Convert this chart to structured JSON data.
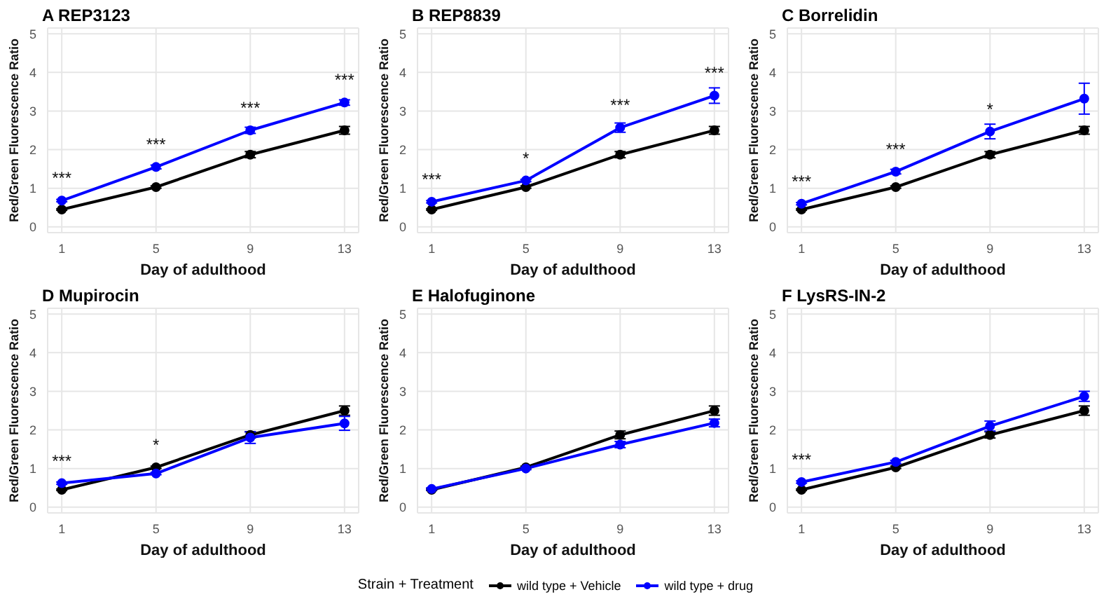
{
  "chart_data": [
    {
      "type": "line",
      "title": "A REP3123",
      "xlabel": "Day of adulthood",
      "ylabel": "Red/Green Fluorescence Ratio",
      "x": [
        1,
        5,
        9,
        13
      ],
      "xlim": [
        0.4,
        13.6
      ],
      "xticks": [
        1,
        5,
        9,
        13
      ],
      "ylim": [
        -0.15,
        5.15
      ],
      "yticks": [
        0,
        1,
        2,
        3,
        4,
        5
      ],
      "grid": true,
      "legend": false,
      "marker": "circle",
      "line_style": "solid",
      "series": [
        {
          "color": "#000000",
          "values": [
            0.45,
            1.03,
            1.87,
            2.5
          ],
          "errors": [
            0.02,
            0.03,
            0.08,
            0.1
          ]
        },
        {
          "color": "#0000ff",
          "values": [
            0.68,
            1.55,
            2.5,
            3.22
          ],
          "errors": [
            0.03,
            0.05,
            0.08,
            0.07
          ]
        }
      ],
      "annotations": [
        {
          "text": "***",
          "x": 1,
          "y": 0.68
        },
        {
          "text": "***",
          "x": 5,
          "y": 1.55
        },
        {
          "text": "***",
          "x": 9,
          "y": 2.5
        },
        {
          "text": "***",
          "x": 13,
          "y": 3.22
        }
      ]
    },
    {
      "type": "line",
      "title": "B REP8839",
      "xlabel": "Day of adulthood",
      "ylabel": "Red/Green Fluorescence Ratio",
      "x": [
        1,
        5,
        9,
        13
      ],
      "xlim": [
        0.4,
        13.6
      ],
      "xticks": [
        1,
        5,
        9,
        13
      ],
      "ylim": [
        -0.15,
        5.15
      ],
      "yticks": [
        0,
        1,
        2,
        3,
        4,
        5
      ],
      "grid": true,
      "legend": false,
      "marker": "circle",
      "line_style": "solid",
      "series": [
        {
          "color": "#000000",
          "values": [
            0.45,
            1.03,
            1.87,
            2.5
          ],
          "errors": [
            0.02,
            0.03,
            0.08,
            0.1
          ]
        },
        {
          "color": "#0000ff",
          "values": [
            0.65,
            1.2,
            2.57,
            3.4
          ],
          "errors": [
            0.03,
            0.03,
            0.12,
            0.2
          ]
        }
      ],
      "annotations": [
        {
          "text": "***",
          "x": 1,
          "y": 0.65
        },
        {
          "text": "*",
          "x": 5,
          "y": 1.2
        },
        {
          "text": "***",
          "x": 9,
          "y": 2.57
        },
        {
          "text": "***",
          "x": 13,
          "y": 3.4
        }
      ]
    },
    {
      "type": "line",
      "title": "C Borrelidin",
      "xlabel": "Day of adulthood",
      "ylabel": "Red/Green Fluorescence Ratio",
      "x": [
        1,
        5,
        9,
        13
      ],
      "xlim": [
        0.4,
        13.6
      ],
      "xticks": [
        1,
        5,
        9,
        13
      ],
      "ylim": [
        -0.15,
        5.15
      ],
      "yticks": [
        0,
        1,
        2,
        3,
        4,
        5
      ],
      "grid": true,
      "legend": false,
      "marker": "circle",
      "line_style": "solid",
      "series": [
        {
          "color": "#000000",
          "values": [
            0.45,
            1.03,
            1.87,
            2.5
          ],
          "errors": [
            0.02,
            0.03,
            0.08,
            0.1
          ]
        },
        {
          "color": "#0000ff",
          "values": [
            0.6,
            1.43,
            2.47,
            3.32
          ],
          "errors": [
            0.03,
            0.06,
            0.19,
            0.4
          ]
        }
      ],
      "annotations": [
        {
          "text": "***",
          "x": 1,
          "y": 0.6
        },
        {
          "text": "***",
          "x": 5,
          "y": 1.43
        },
        {
          "text": "*",
          "x": 9,
          "y": 2.47
        }
      ]
    },
    {
      "type": "line",
      "title": "D Mupirocin",
      "xlabel": "Day of adulthood",
      "ylabel": "Red/Green Fluorescence Ratio",
      "x": [
        1,
        5,
        9,
        13
      ],
      "xlim": [
        0.4,
        13.6
      ],
      "xticks": [
        1,
        5,
        9,
        13
      ],
      "ylim": [
        -0.15,
        5.15
      ],
      "yticks": [
        0,
        1,
        2,
        3,
        4,
        5
      ],
      "grid": true,
      "legend": false,
      "marker": "circle",
      "line_style": "solid",
      "series": [
        {
          "color": "#000000",
          "values": [
            0.45,
            1.03,
            1.87,
            2.5
          ],
          "errors": [
            0.02,
            0.03,
            0.08,
            0.12
          ]
        },
        {
          "color": "#0000ff",
          "values": [
            0.62,
            0.87,
            1.8,
            2.17
          ],
          "errors": [
            0.03,
            0.03,
            0.15,
            0.18
          ]
        }
      ],
      "annotations": [
        {
          "text": "***",
          "x": 1,
          "y": 0.62
        },
        {
          "text": "*",
          "x": 5,
          "y": 1.03
        }
      ]
    },
    {
      "type": "line",
      "title": "E Halofuginone",
      "xlabel": "Day of adulthood",
      "ylabel": "Red/Green Fluorescence Ratio",
      "x": [
        1,
        5,
        9,
        13
      ],
      "xlim": [
        0.4,
        13.6
      ],
      "xticks": [
        1,
        5,
        9,
        13
      ],
      "ylim": [
        -0.15,
        5.15
      ],
      "yticks": [
        0,
        1,
        2,
        3,
        4,
        5
      ],
      "grid": true,
      "legend": false,
      "marker": "circle",
      "line_style": "solid",
      "series": [
        {
          "color": "#000000",
          "values": [
            0.45,
            1.03,
            1.87,
            2.5
          ],
          "errors": [
            0.02,
            0.03,
            0.1,
            0.12
          ]
        },
        {
          "color": "#0000ff",
          "values": [
            0.47,
            1.0,
            1.62,
            2.18
          ],
          "errors": [
            0.03,
            0.03,
            0.08,
            0.1
          ]
        }
      ]
    },
    {
      "type": "line",
      "title": "F LysRS-IN-2",
      "xlabel": "Day of adulthood",
      "ylabel": "Red/Green Fluorescence Ratio",
      "x": [
        1,
        5,
        9,
        13
      ],
      "xlim": [
        0.4,
        13.6
      ],
      "xticks": [
        1,
        5,
        9,
        13
      ],
      "ylim": [
        -0.15,
        5.15
      ],
      "yticks": [
        0,
        1,
        2,
        3,
        4,
        5
      ],
      "grid": true,
      "legend": "bottom",
      "legend_title": "Strain + Treatment",
      "marker": "circle",
      "line_style": "solid",
      "series": [
        {
          "name": "wild type + Vehicle",
          "color": "#000000",
          "values": [
            0.45,
            1.03,
            1.87,
            2.5
          ],
          "errors": [
            0.02,
            0.03,
            0.08,
            0.12
          ]
        },
        {
          "name": "wild type + drug",
          "color": "#0000ff",
          "values": [
            0.65,
            1.17,
            2.1,
            2.87
          ],
          "errors": [
            0.03,
            0.04,
            0.13,
            0.13
          ]
        }
      ],
      "annotations": [
        {
          "text": "***",
          "x": 1,
          "y": 0.65
        }
      ]
    }
  ]
}
